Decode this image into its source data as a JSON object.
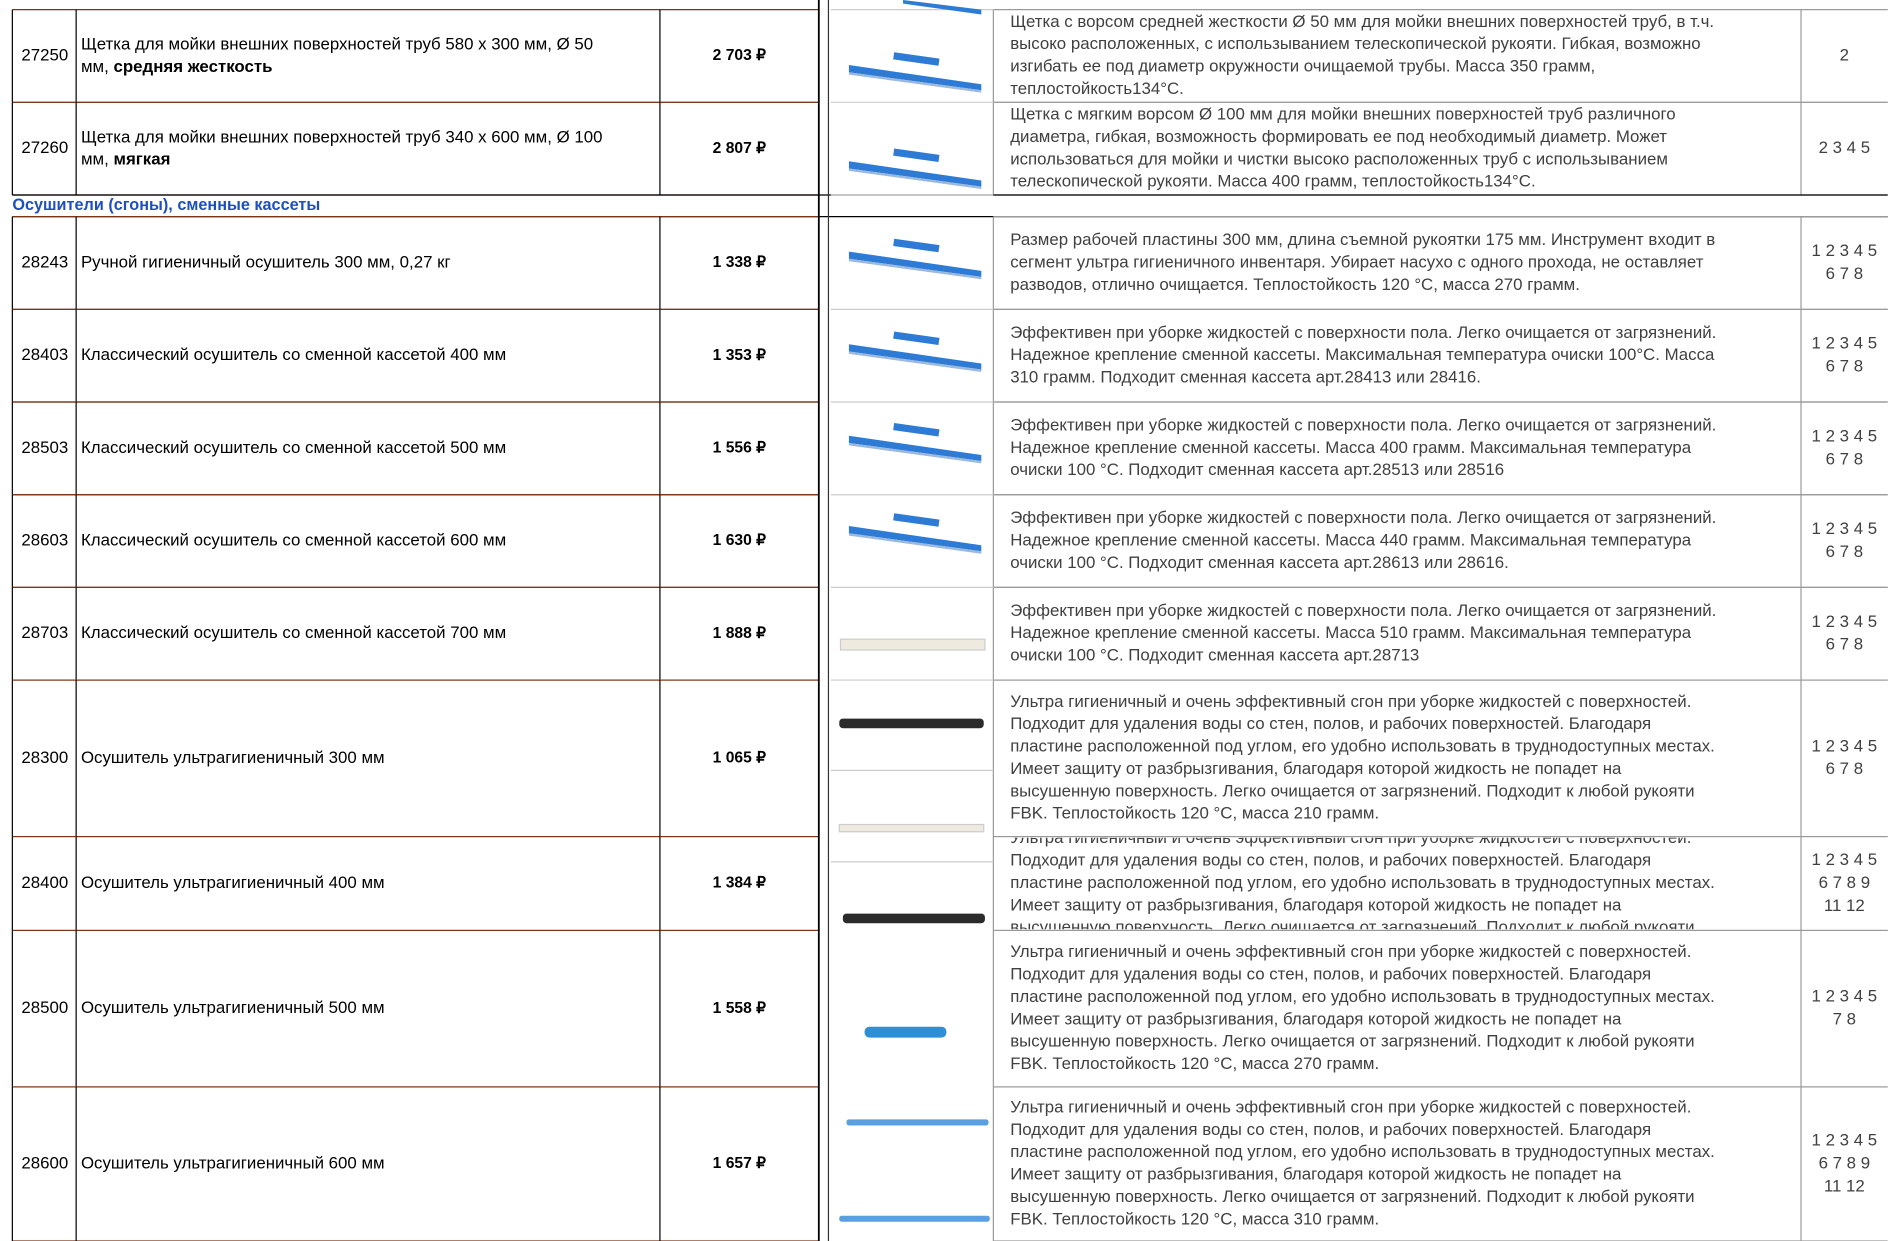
{
  "top_rows": [
    {
      "code": "27250",
      "name_lines": [
        "Щетка для мойки внешних поверхностей труб 580 х 300 мм, Ø 50",
        "мм, "
      ],
      "name_bold": "средняя жесткость",
      "price": "2 703 ₽",
      "desc": [
        "Щетка с ворсом средней жесткости Ø 50 мм для мойки внешних поверхностей труб,  в т.ч.",
        "высоко расположенных, с использыванием телескопической рукояти. Гибкая, возможно",
        "изгибать ее под диаметр окружности очищаемой трубы. Масса 350 грамм,",
        "теплостойкость134°С."
      ],
      "colors": [
        "2"
      ]
    },
    {
      "code": "27260",
      "name_lines": [
        "Щетка для мойки внешних поверхностей труб 340 х 600 мм, Ø 100",
        "мм, "
      ],
      "name_bold": "мягкая",
      "price": "2 807 ₽",
      "desc": [
        "Щетка с мягким ворсом Ø 100 мм для мойки внешних поверхностей труб различного",
        "диаметра, гибкая, возможность формировать ее под необходимый диаметр. Может",
        "использоваться для мойки и чистки высоко расположенных труб с использыванием",
        "телескопической рукояти. Масса 400 грамм, теплостойкость134°С."
      ],
      "colors": [
        "2 3 4 5"
      ]
    }
  ],
  "section": "Осушители (сгоны), сменные кассеты",
  "rows": [
    {
      "code": "28243",
      "name": "Ручной гигиеничный осушитель 300 мм, 0,27 кг",
      "price": "1 338 ₽",
      "desc": [
        "Размер рабочей пластины 300 мм, длина съемной рукоятки 175 мм. Инструмент входит в",
        "сегмент ультра гигиеничного инвентаря. Убирает насухо с одного прохода, не оставляет",
        "разводов, отлично очищается. Теплостойкость 120 °С, масса 270 грамм."
      ],
      "colors": [
        "1 2 3 4 5",
        "6 7 8"
      ]
    },
    {
      "code": "28403",
      "name": "Классический осушитель со сменной кассетой 400 мм",
      "price": "1 353 ₽",
      "desc": [
        "Эффективен при уборке жидкостей с поверхности пола. Легко очищается от загрязнений.",
        "Надежное крепление сменной кассеты. Максимальная температура очиски 100°С. Масса",
        "310 грамм. Подходит сменная кассета арт.28413 или 28416."
      ],
      "colors": [
        "1 2 3 4 5",
        "6 7 8"
      ]
    },
    {
      "code": "28503",
      "name": "Классический осушитель со сменной кассетой 500 мм",
      "price": "1 556 ₽",
      "desc": [
        "Эффективен при уборке жидкостей с поверхности пола. Легко очищается от загрязнений.",
        "Надежное крепление сменной кассеты. Масса 400 грамм. Максимальная температура",
        "очиски 100 °С. Подходит сменная кассета арт.28513 или 28516"
      ],
      "colors": [
        "1 2 3 4 5",
        "6 7 8"
      ]
    },
    {
      "code": "28603",
      "name": "Классический осушитель со сменной кассетой 600 мм",
      "price": "1 630 ₽",
      "desc": [
        "Эффективен при уборке жидкостей с поверхности пола. Легко очищается от загрязнений.",
        "Надежное крепление сменной кассеты. Масса 440 грамм. Максимальная температура",
        "очиски 100 °С. Подходит сменная кассета арт.28613 или 28616."
      ],
      "colors": [
        "1 2 3 4 5",
        "6 7 8"
      ]
    },
    {
      "code": "28703",
      "name": "Классический осушитель со сменной кассетой 700 мм",
      "price": "1 888 ₽",
      "desc": [
        "Эффективен при уборке жидкостей с поверхности пола. Легко очищается от загрязнений.",
        "Надежное крепление сменной кассеты. Масса 510 грамм. Максимальная температура",
        "очиски 100 °С. Подходит сменная кассета арт.28713"
      ],
      "colors": [
        "1 2 3 4 5",
        "6 7 8"
      ]
    },
    {
      "code": "28300",
      "name": "Осушитель ультрагигиеничный 300 мм",
      "price": "1 065 ₽",
      "desc": [
        "Ультра гигиеничный и очень эффективный сгон при уборке жидкостей с поверхностей.",
        "Подходит для удаления воды со стен, полов, и рабочих поверхностей. Благодаря",
        "пластине расположенной под углом, его удобно использовать в труднодоступных местах.",
        "Имеет защиту от разбрызгивания, благодаря которой жидкость не попадет на",
        "высушенную поверхность. Легко очищается от загрязнений. Подходит к любой рукояти",
        "FBK. Теплостойкость 120 °С, масса 210 грамм."
      ],
      "colors": [
        "1 2 3 4 5",
        "6 7 8"
      ]
    },
    {
      "code": "28400",
      "name": "Осушитель ультрагигиеничный 400 мм",
      "price": "1 384 ₽",
      "desc": [
        "Ультра гигиеничный и очень эффективный сгон при уборке жидкостей с поверхностей.",
        "Подходит для удаления воды со стен, полов, и рабочих поверхностей. Благодаря",
        "пластине расположенной под углом, его удобно использовать в труднодоступных местах.",
        "Имеет защиту от разбрызгивания, благодаря которой жидкость не попадет на",
        "высушенную поверхность. Легко очищается от загрязнений. Подходит к любой рукояти"
      ],
      "colors": [
        "1 2 3 4 5",
        "6 7 8 9",
        "11 12"
      ]
    },
    {
      "code": "28500",
      "name": "Осушитель ультрагигиеничный 500 мм",
      "price": "1 558 ₽",
      "desc": [
        "Ультра гигиеничный и очень эффективный сгон при уборке жидкостей с поверхностей.",
        "Подходит для удаления воды со стен, полов, и рабочих поверхностей. Благодаря",
        "пластине расположенной под углом, его удобно использовать в труднодоступных местах.",
        "Имеет защиту от разбрызгивания, благодаря которой жидкость не попадет на",
        "высушенную поверхность. Легко очищается от загрязнений. Подходит к любой рукояти",
        "FBK. Теплостойкость 120 °С, масса 270 грамм."
      ],
      "colors": [
        "1 2 3 4 5",
        "7 8"
      ]
    },
    {
      "code": "28600",
      "name": "Осушитель ультрагигиеничный 600 мм",
      "price": "1 657 ₽",
      "desc": [
        "Ультра гигиеничный и очень эффективный сгон при уборке жидкостей с поверхностей.",
        "Подходит для удаления воды со стен, полов, и рабочих поверхностей. Благодаря",
        "пластине расположенной под углом, его удобно использовать в труднодоступных местах.",
        "Имеет защиту от разбрызгивания, благодаря которой жидкость не попадет на",
        "высушенную поверхность. Легко очищается от загрязнений. Подходит к любой рукояти",
        "FBK. Теплостойкость 120 °С, масса 310 грамм."
      ],
      "colors": [
        "1 2 3 4 5",
        "6 7 8 9",
        "11 12"
      ]
    }
  ]
}
